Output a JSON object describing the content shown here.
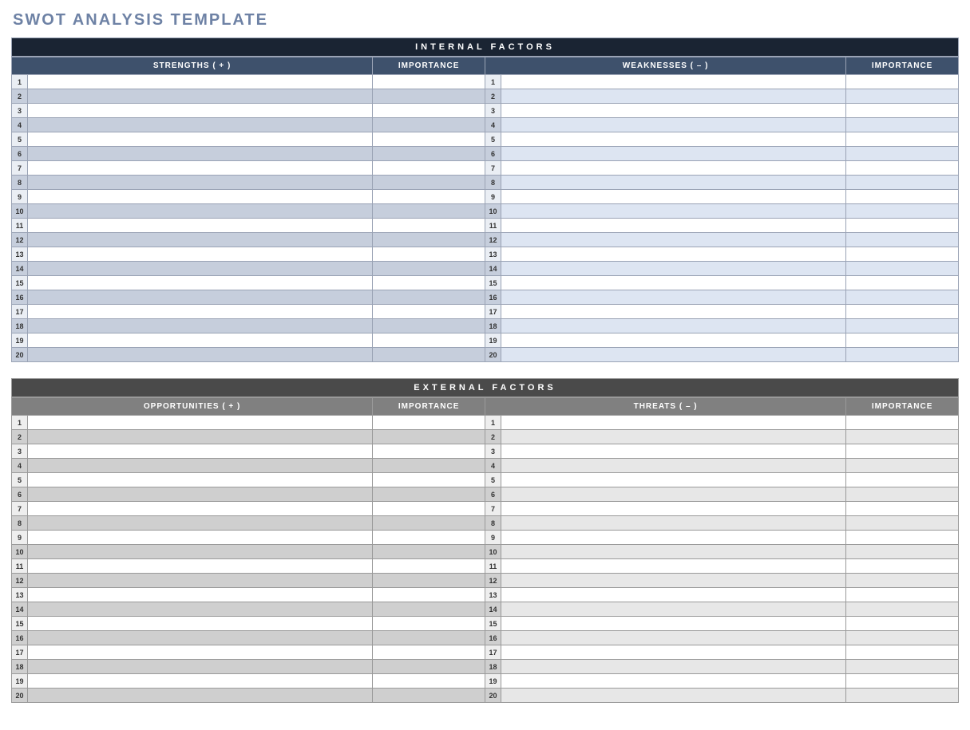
{
  "title": "SWOT ANALYSIS TEMPLATE",
  "title_color": "#6e82a5",
  "row_count": 20,
  "sections": [
    {
      "key": "internal",
      "header": "INTERNAL FACTORS",
      "header_bg": "#1a2433",
      "subheader_bg": "#3e516c",
      "left_col": "STRENGTHS  ( + )",
      "right_col": "WEAKNESSES  ( – )",
      "importance_label": "IMPORTANCE",
      "num_cell_bg_odd": "#eaeef4",
      "num_cell_bg_even": "#c6cedc",
      "left_odd_bg": "#ffffff",
      "left_even_bg": "#c6cedc",
      "right_odd_bg": "#ffffff",
      "right_even_bg": "#dde5f2",
      "border_color": "#9aa3b5"
    },
    {
      "key": "external",
      "header": "EXTERNAL FACTORS",
      "header_bg": "#4a4a4a",
      "subheader_bg": "#808080",
      "left_col": "OPPORTUNITIES  ( + )",
      "right_col": "THREATS  ( – )",
      "importance_label": "IMPORTANCE",
      "num_cell_bg_odd": "#eeeeee",
      "num_cell_bg_even": "#cfcfcf",
      "left_odd_bg": "#ffffff",
      "left_even_bg": "#cfcfcf",
      "right_odd_bg": "#ffffff",
      "right_even_bg": "#e7e7e7",
      "border_color": "#9a9a9a"
    }
  ]
}
